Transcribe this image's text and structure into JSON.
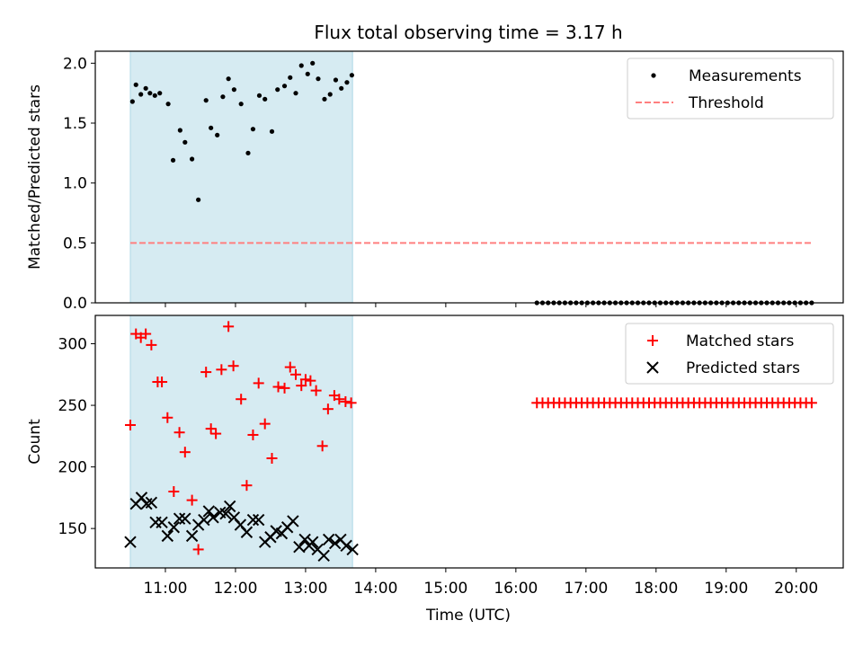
{
  "title": "Flux total observing time = 3.17 h",
  "chart_data": [
    {
      "type": "scatter",
      "ylabel": "Matched/Predicted stars",
      "xlim": [
        10.0,
        20.67
      ],
      "ylim": [
        0.0,
        2.1
      ],
      "yticks": [
        0.0,
        0.5,
        1.0,
        1.5,
        2.0
      ],
      "ytick_labels": [
        "0.0",
        "0.5",
        "1.0",
        "1.5",
        "2.0"
      ],
      "observing_window": [
        10.5,
        13.67
      ],
      "legend_position": "top-right",
      "threshold": {
        "name": "Threshold",
        "x": [
          10.5,
          20.23
        ],
        "y": 0.5,
        "color": "#ff7f7f"
      },
      "series": [
        {
          "name": "Measurements",
          "color": "#000000",
          "points": [
            [
              10.53,
              1.68
            ],
            [
              10.58,
              1.82
            ],
            [
              10.65,
              1.74
            ],
            [
              10.72,
              1.79
            ],
            [
              10.78,
              1.75
            ],
            [
              10.85,
              1.73
            ],
            [
              10.92,
              1.75
            ],
            [
              11.04,
              1.66
            ],
            [
              11.11,
              1.19
            ],
            [
              11.21,
              1.44
            ],
            [
              11.28,
              1.34
            ],
            [
              11.38,
              1.2
            ],
            [
              11.47,
              0.86
            ],
            [
              11.58,
              1.69
            ],
            [
              11.65,
              1.46
            ],
            [
              11.74,
              1.4
            ],
            [
              11.82,
              1.72
            ],
            [
              11.9,
              1.87
            ],
            [
              11.98,
              1.78
            ],
            [
              12.08,
              1.66
            ],
            [
              12.18,
              1.25
            ],
            [
              12.25,
              1.45
            ],
            [
              12.34,
              1.73
            ],
            [
              12.42,
              1.7
            ],
            [
              12.52,
              1.43
            ],
            [
              12.6,
              1.78
            ],
            [
              12.7,
              1.81
            ],
            [
              12.78,
              1.88
            ],
            [
              12.86,
              1.75
            ],
            [
              12.94,
              1.98
            ],
            [
              13.03,
              1.91
            ],
            [
              13.1,
              2.0
            ],
            [
              13.18,
              1.87
            ],
            [
              13.27,
              1.7
            ],
            [
              13.35,
              1.74
            ],
            [
              13.43,
              1.86
            ],
            [
              13.51,
              1.79
            ],
            [
              13.59,
              1.84
            ],
            [
              13.66,
              1.9
            ],
            [
              16.3,
              0
            ],
            [
              16.38,
              0
            ],
            [
              16.46,
              0
            ],
            [
              16.54,
              0
            ],
            [
              16.62,
              0
            ],
            [
              16.7,
              0
            ],
            [
              16.78,
              0
            ],
            [
              16.86,
              0
            ],
            [
              16.94,
              0
            ],
            [
              17.02,
              0
            ],
            [
              17.1,
              0
            ],
            [
              17.18,
              0
            ],
            [
              17.26,
              0
            ],
            [
              17.34,
              0
            ],
            [
              17.42,
              0
            ],
            [
              17.5,
              0
            ],
            [
              17.58,
              0
            ],
            [
              17.66,
              0
            ],
            [
              17.74,
              0
            ],
            [
              17.82,
              0
            ],
            [
              17.9,
              0
            ],
            [
              17.98,
              0
            ],
            [
              18.06,
              0
            ],
            [
              18.14,
              0
            ],
            [
              18.22,
              0
            ],
            [
              18.3,
              0
            ],
            [
              18.38,
              0
            ],
            [
              18.46,
              0
            ],
            [
              18.54,
              0
            ],
            [
              18.62,
              0
            ],
            [
              18.7,
              0
            ],
            [
              18.78,
              0
            ],
            [
              18.86,
              0
            ],
            [
              18.94,
              0
            ],
            [
              19.02,
              0
            ],
            [
              19.1,
              0
            ],
            [
              19.18,
              0
            ],
            [
              19.26,
              0
            ],
            [
              19.34,
              0
            ],
            [
              19.42,
              0
            ],
            [
              19.5,
              0
            ],
            [
              19.58,
              0
            ],
            [
              19.66,
              0
            ],
            [
              19.74,
              0
            ],
            [
              19.82,
              0
            ],
            [
              19.9,
              0
            ],
            [
              19.98,
              0
            ],
            [
              20.06,
              0
            ],
            [
              20.14,
              0
            ],
            [
              20.22,
              0
            ]
          ]
        }
      ]
    },
    {
      "type": "scatter",
      "xlabel": "Time (UTC)",
      "ylabel": "Count",
      "xlim": [
        10.0,
        20.67
      ],
      "ylim": [
        118,
        323
      ],
      "xticks": [
        11,
        12,
        13,
        14,
        15,
        16,
        17,
        18,
        19,
        20
      ],
      "xtick_labels": [
        "11:00",
        "12:00",
        "13:00",
        "14:00",
        "15:00",
        "16:00",
        "17:00",
        "18:00",
        "19:00",
        "20:00"
      ],
      "yticks": [
        150,
        200,
        250,
        300
      ],
      "ytick_labels": [
        "150",
        "200",
        "250",
        "300"
      ],
      "observing_window": [
        10.5,
        13.67
      ],
      "legend_position": "top-right",
      "series": [
        {
          "name": "Matched stars",
          "marker": "plus",
          "color": "#ff0000",
          "points": [
            [
              10.5,
              234
            ],
            [
              10.58,
              308
            ],
            [
              10.65,
              305
            ],
            [
              10.72,
              308
            ],
            [
              10.8,
              299
            ],
            [
              10.89,
              269
            ],
            [
              10.95,
              269
            ],
            [
              11.03,
              240
            ],
            [
              11.12,
              180
            ],
            [
              11.2,
              228
            ],
            [
              11.28,
              212
            ],
            [
              11.38,
              173
            ],
            [
              11.47,
              133
            ],
            [
              11.58,
              277
            ],
            [
              11.65,
              231
            ],
            [
              11.72,
              227
            ],
            [
              11.8,
              279
            ],
            [
              11.9,
              314
            ],
            [
              11.97,
              282
            ],
            [
              12.08,
              255
            ],
            [
              12.16,
              185
            ],
            [
              12.25,
              226
            ],
            [
              12.33,
              268
            ],
            [
              12.42,
              235
            ],
            [
              12.52,
              207
            ],
            [
              12.61,
              265
            ],
            [
              12.7,
              264
            ],
            [
              12.78,
              281
            ],
            [
              12.86,
              275
            ],
            [
              12.94,
              266
            ],
            [
              13.0,
              271
            ],
            [
              13.07,
              270
            ],
            [
              13.15,
              262
            ],
            [
              13.24,
              217
            ],
            [
              13.32,
              247
            ],
            [
              13.41,
              258
            ],
            [
              13.48,
              255
            ],
            [
              13.57,
              253
            ],
            [
              13.65,
              252
            ],
            [
              16.3,
              252
            ],
            [
              16.38,
              252
            ],
            [
              16.46,
              252
            ],
            [
              16.54,
              252
            ],
            [
              16.62,
              252
            ],
            [
              16.7,
              252
            ],
            [
              16.78,
              252
            ],
            [
              16.86,
              252
            ],
            [
              16.94,
              252
            ],
            [
              17.02,
              252
            ],
            [
              17.1,
              252
            ],
            [
              17.18,
              252
            ],
            [
              17.26,
              252
            ],
            [
              17.34,
              252
            ],
            [
              17.42,
              252
            ],
            [
              17.5,
              252
            ],
            [
              17.58,
              252
            ],
            [
              17.66,
              252
            ],
            [
              17.74,
              252
            ],
            [
              17.82,
              252
            ],
            [
              17.9,
              252
            ],
            [
              17.98,
              252
            ],
            [
              18.06,
              252
            ],
            [
              18.14,
              252
            ],
            [
              18.22,
              252
            ],
            [
              18.3,
              252
            ],
            [
              18.38,
              252
            ],
            [
              18.46,
              252
            ],
            [
              18.54,
              252
            ],
            [
              18.62,
              252
            ],
            [
              18.7,
              252
            ],
            [
              18.78,
              252
            ],
            [
              18.86,
              252
            ],
            [
              18.94,
              252
            ],
            [
              19.02,
              252
            ],
            [
              19.1,
              252
            ],
            [
              19.18,
              252
            ],
            [
              19.26,
              252
            ],
            [
              19.34,
              252
            ],
            [
              19.42,
              252
            ],
            [
              19.5,
              252
            ],
            [
              19.58,
              252
            ],
            [
              19.66,
              252
            ],
            [
              19.74,
              252
            ],
            [
              19.82,
              252
            ],
            [
              19.9,
              252
            ],
            [
              19.98,
              252
            ],
            [
              20.06,
              252
            ],
            [
              20.14,
              252
            ],
            [
              20.22,
              252
            ]
          ]
        },
        {
          "name": "Predicted stars",
          "marker": "x",
          "color": "#000000",
          "points": [
            [
              10.5,
              139
            ],
            [
              10.58,
              170
            ],
            [
              10.66,
              175
            ],
            [
              10.73,
              170
            ],
            [
              10.8,
              171
            ],
            [
              10.86,
              155
            ],
            [
              10.95,
              155
            ],
            [
              11.03,
              144
            ],
            [
              11.12,
              151
            ],
            [
              11.2,
              158
            ],
            [
              11.28,
              158
            ],
            [
              11.38,
              144
            ],
            [
              11.47,
              153
            ],
            [
              11.55,
              157
            ],
            [
              11.62,
              164
            ],
            [
              11.68,
              159
            ],
            [
              11.78,
              163
            ],
            [
              11.86,
              162
            ],
            [
              11.92,
              168
            ],
            [
              11.98,
              159
            ],
            [
              12.07,
              153
            ],
            [
              12.16,
              147
            ],
            [
              12.25,
              157
            ],
            [
              12.33,
              157
            ],
            [
              12.42,
              139
            ],
            [
              12.5,
              143
            ],
            [
              12.58,
              148
            ],
            [
              12.66,
              146
            ],
            [
              12.74,
              151
            ],
            [
              12.82,
              156
            ],
            [
              12.91,
              135
            ],
            [
              12.99,
              141
            ],
            [
              13.05,
              136
            ],
            [
              13.1,
              139
            ],
            [
              13.17,
              133
            ],
            [
              13.26,
              128
            ],
            [
              13.33,
              141
            ],
            [
              13.42,
              138
            ],
            [
              13.5,
              141
            ],
            [
              13.58,
              136
            ],
            [
              13.67,
              133
            ]
          ]
        }
      ]
    }
  ]
}
